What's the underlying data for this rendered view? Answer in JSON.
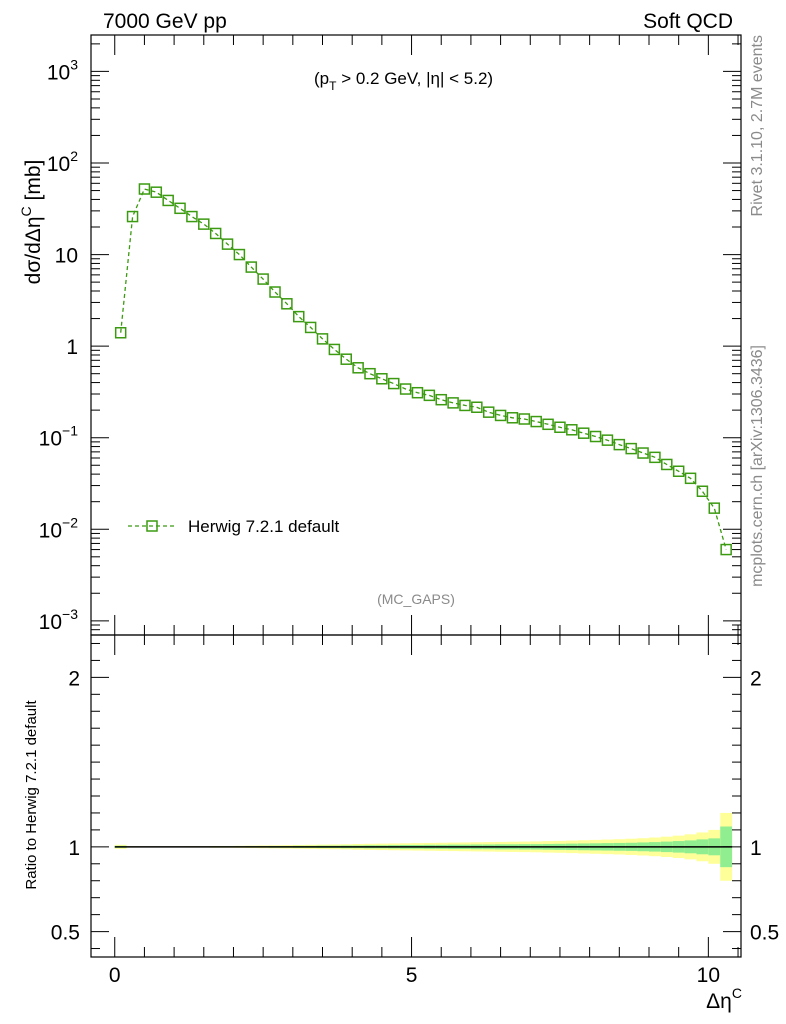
{
  "header": {
    "left": "7000 GeV pp",
    "right": "Soft QCD"
  },
  "side_labels": {
    "rivet": "Rivet 3.1.10,  2.7M events",
    "mcplots": "mcplots.cern.ch [arXiv:1306.3436]"
  },
  "colors": {
    "series": "#3b9a10",
    "band_outer": "#ffff99",
    "band_inner": "#90ee90",
    "reference": "#000000",
    "grey_text": "#8a8a8a"
  },
  "chart_data": [
    {
      "type": "line",
      "scale_y": "log",
      "xlim": [
        -0.4,
        10.55
      ],
      "ylim": [
        0.0007,
        2500
      ],
      "ylabel": "dσ/dΔη",
      "ylabel_sup": "C",
      "ylabel_unit": " [mb]",
      "cut_label": "(p_T > 0.2 GeV, |η| < 5.2)",
      "cut_parts": {
        "open": "(p",
        "sub": "T",
        "rest": " > 0.2 GeV, |η| < 5.2)"
      },
      "analysis_label": "(MC_GAPS)",
      "y_ticks": [
        {
          "value": 0.001,
          "base": "10",
          "exp": "−3"
        },
        {
          "value": 0.01,
          "base": "10",
          "exp": "−2"
        },
        {
          "value": 0.1,
          "base": "10",
          "exp": "−1"
        },
        {
          "value": 1,
          "base": "1",
          "exp": ""
        },
        {
          "value": 10,
          "base": "10",
          "exp": ""
        },
        {
          "value": 100,
          "base": "10",
          "exp": "2"
        },
        {
          "value": 1000,
          "base": "10",
          "exp": "3"
        }
      ],
      "legend": {
        "position": "middle-left",
        "entry": "Herwig 7.2.1 default"
      },
      "series": [
        {
          "name": "Herwig 7.2.1 default",
          "x": [
            0.1,
            0.3,
            0.5,
            0.7,
            0.9,
            1.1,
            1.3,
            1.5,
            1.7,
            1.9,
            2.1,
            2.3,
            2.5,
            2.7,
            2.9,
            3.1,
            3.3,
            3.5,
            3.7,
            3.9,
            4.1,
            4.3,
            4.5,
            4.7,
            4.9,
            5.1,
            5.3,
            5.5,
            5.7,
            5.9,
            6.1,
            6.3,
            6.5,
            6.7,
            6.9,
            7.1,
            7.3,
            7.5,
            7.7,
            7.9,
            8.1,
            8.3,
            8.5,
            8.7,
            8.9,
            9.1,
            9.3,
            9.5,
            9.7,
            9.9,
            10.1,
            10.3
          ],
          "values": [
            1.4,
            26,
            52,
            48,
            39,
            32,
            26,
            21.5,
            17,
            13,
            10,
            7.3,
            5.4,
            3.9,
            2.9,
            2.1,
            1.6,
            1.2,
            0.92,
            0.72,
            0.58,
            0.5,
            0.44,
            0.39,
            0.34,
            0.31,
            0.29,
            0.26,
            0.24,
            0.225,
            0.215,
            0.19,
            0.175,
            0.165,
            0.16,
            0.15,
            0.14,
            0.13,
            0.122,
            0.112,
            0.103,
            0.094,
            0.084,
            0.076,
            0.068,
            0.061,
            0.051,
            0.043,
            0.036,
            0.026,
            0.017,
            0.006
          ]
        }
      ]
    },
    {
      "type": "area",
      "xlabel": "Δη",
      "xlabel_sup": "C",
      "ylabel": "Ratio to Herwig 7.2.1 default",
      "xlim": [
        -0.4,
        10.55
      ],
      "ylim": [
        0.35,
        2.25
      ],
      "x_ticks": [
        0,
        5,
        10
      ],
      "y_ticks": [
        0.5,
        1,
        2
      ],
      "reference_line": 1.0,
      "x": [
        0.1,
        0.3,
        0.5,
        0.7,
        0.9,
        1.1,
        1.3,
        1.5,
        1.7,
        1.9,
        2.1,
        2.3,
        2.5,
        2.7,
        2.9,
        3.1,
        3.3,
        3.5,
        3.7,
        3.9,
        4.1,
        4.3,
        4.5,
        4.7,
        4.9,
        5.1,
        5.3,
        5.5,
        5.7,
        5.9,
        6.1,
        6.3,
        6.5,
        6.7,
        6.9,
        7.1,
        7.3,
        7.5,
        7.7,
        7.9,
        8.1,
        8.3,
        8.5,
        8.7,
        8.9,
        9.1,
        9.3,
        9.5,
        9.7,
        9.9,
        10.1,
        10.3
      ],
      "band_outer": [
        0.012,
        0.004,
        0.003,
        0.003,
        0.003,
        0.003,
        0.004,
        0.004,
        0.005,
        0.005,
        0.006,
        0.007,
        0.008,
        0.009,
        0.01,
        0.011,
        0.012,
        0.013,
        0.014,
        0.015,
        0.017,
        0.018,
        0.019,
        0.02,
        0.021,
        0.022,
        0.023,
        0.024,
        0.025,
        0.026,
        0.027,
        0.028,
        0.029,
        0.03,
        0.031,
        0.032,
        0.034,
        0.035,
        0.037,
        0.039,
        0.041,
        0.043,
        0.045,
        0.048,
        0.051,
        0.055,
        0.06,
        0.066,
        0.074,
        0.085,
        0.1,
        0.2
      ],
      "band_inner": [
        0.006,
        0.002,
        0.002,
        0.002,
        0.002,
        0.002,
        0.002,
        0.002,
        0.003,
        0.003,
        0.003,
        0.004,
        0.004,
        0.005,
        0.005,
        0.006,
        0.006,
        0.007,
        0.007,
        0.008,
        0.008,
        0.009,
        0.009,
        0.01,
        0.011,
        0.011,
        0.012,
        0.012,
        0.013,
        0.013,
        0.014,
        0.014,
        0.015,
        0.015,
        0.016,
        0.016,
        0.017,
        0.018,
        0.019,
        0.02,
        0.021,
        0.022,
        0.023,
        0.024,
        0.026,
        0.028,
        0.031,
        0.034,
        0.038,
        0.044,
        0.05,
        0.12
      ]
    }
  ]
}
